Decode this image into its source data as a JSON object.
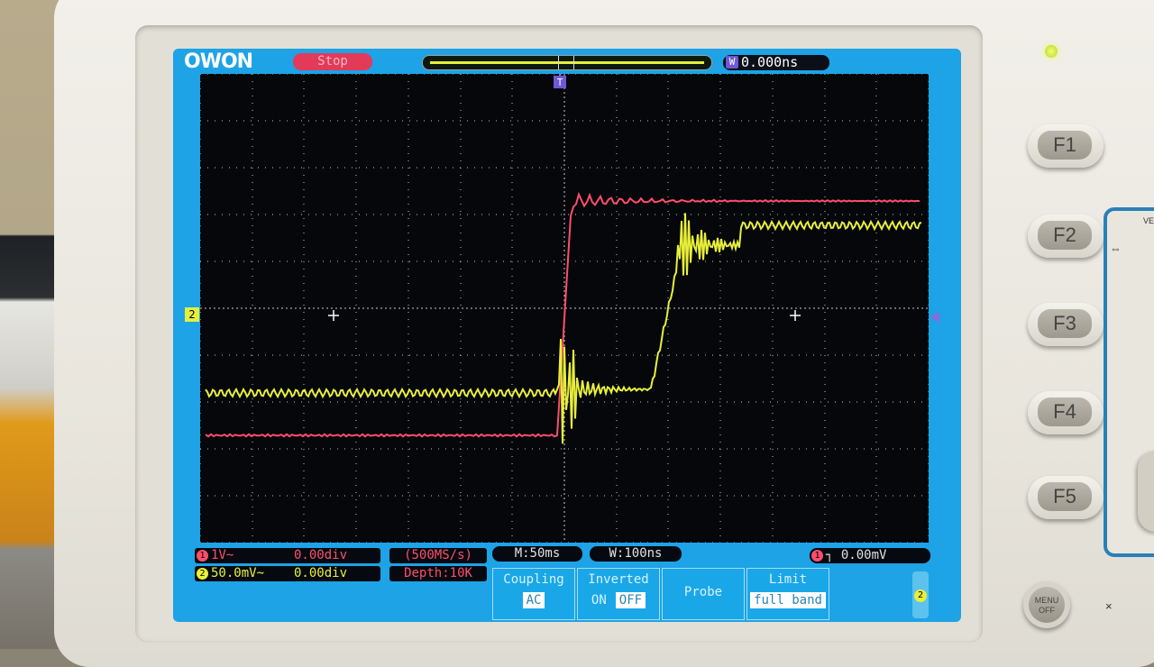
{
  "scope": {
    "logo": "OWON",
    "run_state": "Stop",
    "trigger_time": "0.000ns",
    "trigger_time_tag": "W",
    "trigger_marker": "T",
    "channel_marker": "2",
    "led_color": "#e9ff5a"
  },
  "status": {
    "ch1_num": "1",
    "ch1_scale": "1V~",
    "ch1_offset": "0.00div",
    "ch2_num": "2",
    "ch2_scale": "50.0mV~",
    "ch2_offset": "0.00div",
    "sample_rate": "(500MS/s)",
    "depth": "Depth:10K",
    "timebase_main": "M:50ms",
    "timebase_window": "W:100ns",
    "trigger_channel": "1",
    "trigger_symbol": "┐",
    "trigger_level": "0.00mV"
  },
  "menu": {
    "coupling_label": "Coupling",
    "coupling_value": "AC",
    "inverted_label": "Inverted",
    "inverted_on": "ON",
    "inverted_off": "OFF",
    "probe_label": "Probe",
    "limit_label": "Limit",
    "limit_value": "full band",
    "side_tab": "2"
  },
  "function_keys": [
    "F1",
    "F2",
    "F3",
    "F4",
    "F5"
  ],
  "menu_off_key": "MENU OFF",
  "panel_text": "VE",
  "panel_arrow": "⇔",
  "panel_close": "×",
  "colors": {
    "ch1": "#ff4d6e",
    "ch2": "#e8ef3a",
    "screen_frame": "#1da3e6",
    "grid_bg": "#05070a"
  }
}
